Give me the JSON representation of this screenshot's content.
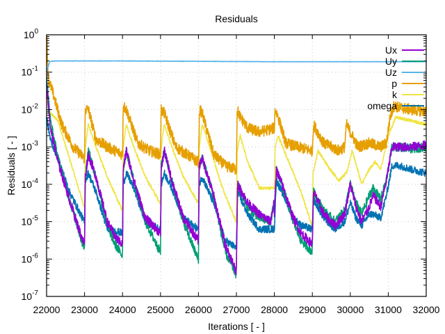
{
  "chart_data": {
    "type": "line",
    "title": "Residuals",
    "xlabel": "Iterations [ - ]",
    "ylabel": "Residuals [ - ]",
    "xscale": "linear",
    "yscale": "log",
    "xlim": [
      22000,
      32000
    ],
    "ylim": [
      1e-07,
      1
    ],
    "grid": true,
    "legend_position": "top-right",
    "x_ticks": [
      "22000",
      "23000",
      "24000",
      "25000",
      "26000",
      "27000",
      "28000",
      "29000",
      "30000",
      "31000",
      "32000"
    ],
    "y_ticks": [
      {
        "base": "10",
        "exp": "0"
      },
      {
        "base": "10",
        "exp": "-1"
      },
      {
        "base": "10",
        "exp": "-2"
      },
      {
        "base": "10",
        "exp": "-3"
      },
      {
        "base": "10",
        "exp": "-4"
      },
      {
        "base": "10",
        "exp": "-5"
      },
      {
        "base": "10",
        "exp": "-6"
      },
      {
        "base": "10",
        "exp": "-7"
      }
    ],
    "series": [
      {
        "name": "Ux",
        "color": "#9400d3",
        "noise": 0.12,
        "points": [
          [
            22000,
            -1.3
          ],
          [
            22100,
            -2.5
          ],
          [
            22300,
            -3.4
          ],
          [
            22600,
            -4.4
          ],
          [
            22950,
            -5.5
          ],
          [
            23000,
            -5.6
          ],
          [
            23020,
            -3.8
          ],
          [
            23100,
            -3.2
          ],
          [
            23300,
            -3.8
          ],
          [
            23600,
            -5.0
          ],
          [
            23800,
            -5.4
          ],
          [
            23990,
            -5.6
          ],
          [
            24000,
            -5.5
          ],
          [
            24020,
            -3.6
          ],
          [
            24100,
            -3.1
          ],
          [
            24300,
            -3.9
          ],
          [
            24600,
            -4.9
          ],
          [
            24990,
            -5.3
          ],
          [
            25000,
            -5.3
          ],
          [
            25020,
            -3.6
          ],
          [
            25100,
            -3.1
          ],
          [
            25300,
            -3.9
          ],
          [
            25600,
            -4.9
          ],
          [
            25990,
            -5.5
          ],
          [
            26000,
            -5.5
          ],
          [
            26020,
            -3.5
          ],
          [
            26100,
            -3.3
          ],
          [
            26400,
            -4.3
          ],
          [
            26700,
            -5.6
          ],
          [
            26990,
            -6.3
          ],
          [
            27000,
            -6.2
          ],
          [
            27030,
            -4.0
          ],
          [
            27300,
            -4.5
          ],
          [
            27600,
            -4.8
          ],
          [
            27900,
            -5.0
          ],
          [
            27990,
            -4.5
          ],
          [
            28000,
            -4.8
          ],
          [
            28050,
            -3.6
          ],
          [
            28200,
            -4.0
          ],
          [
            28500,
            -4.9
          ],
          [
            28700,
            -5.3
          ],
          [
            28990,
            -5.6
          ],
          [
            29000,
            -5.5
          ],
          [
            29030,
            -4.2
          ],
          [
            29300,
            -4.8
          ],
          [
            29600,
            -5.1
          ],
          [
            29850,
            -4.8
          ],
          [
            30000,
            -4.0
          ],
          [
            30150,
            -4.6
          ],
          [
            30300,
            -5.0
          ],
          [
            30500,
            -4.6
          ],
          [
            30600,
            -4.3
          ],
          [
            30800,
            -4.6
          ],
          [
            30950,
            -3.9
          ],
          [
            31100,
            -3.0
          ],
          [
            31300,
            -3.0
          ],
          [
            31600,
            -3.0
          ],
          [
            32000,
            -2.95
          ]
        ]
      },
      {
        "name": "Uy",
        "color": "#009e73",
        "noise": 0.12,
        "points": [
          [
            22000,
            -1.1
          ],
          [
            22100,
            -2.3
          ],
          [
            22300,
            -3.3
          ],
          [
            22600,
            -4.4
          ],
          [
            22950,
            -5.6
          ],
          [
            23000,
            -5.7
          ],
          [
            23020,
            -3.7
          ],
          [
            23100,
            -3.1
          ],
          [
            23300,
            -3.8
          ],
          [
            23600,
            -5.1
          ],
          [
            23800,
            -5.6
          ],
          [
            23990,
            -5.9
          ],
          [
            24000,
            -5.8
          ],
          [
            24020,
            -3.6
          ],
          [
            24100,
            -3.1
          ],
          [
            24300,
            -3.9
          ],
          [
            24600,
            -5.0
          ],
          [
            24990,
            -5.8
          ],
          [
            25000,
            -5.8
          ],
          [
            25020,
            -3.5
          ],
          [
            25100,
            -3.1
          ],
          [
            25300,
            -3.9
          ],
          [
            25600,
            -5.0
          ],
          [
            25990,
            -6.0
          ],
          [
            26000,
            -6.0
          ],
          [
            26020,
            -3.5
          ],
          [
            26100,
            -3.3
          ],
          [
            26400,
            -4.3
          ],
          [
            26700,
            -5.8
          ],
          [
            26990,
            -6.4
          ],
          [
            27000,
            -6.3
          ],
          [
            27030,
            -4.0
          ],
          [
            27300,
            -4.6
          ],
          [
            27600,
            -4.9
          ],
          [
            27900,
            -5.0
          ],
          [
            27990,
            -4.5
          ],
          [
            28000,
            -4.8
          ],
          [
            28050,
            -3.6
          ],
          [
            28200,
            -4.0
          ],
          [
            28500,
            -5.0
          ],
          [
            28700,
            -5.5
          ],
          [
            28990,
            -5.8
          ],
          [
            29000,
            -5.7
          ],
          [
            29030,
            -4.2
          ],
          [
            29300,
            -4.7
          ],
          [
            29600,
            -5.0
          ],
          [
            29850,
            -4.7
          ],
          [
            30000,
            -4.0
          ],
          [
            30150,
            -4.5
          ],
          [
            30300,
            -4.8
          ],
          [
            30500,
            -4.3
          ],
          [
            30600,
            -4.1
          ],
          [
            30800,
            -4.4
          ],
          [
            30950,
            -3.9
          ],
          [
            31100,
            -3.0
          ],
          [
            31300,
            -3.0
          ],
          [
            31600,
            -3.05
          ],
          [
            32000,
            -3.0
          ]
        ]
      },
      {
        "name": "Uz",
        "color": "#56b4e9",
        "noise": 0.005,
        "points": [
          [
            22000,
            -1.0
          ],
          [
            22080,
            -0.72
          ],
          [
            22200,
            -0.7
          ],
          [
            24000,
            -0.7
          ],
          [
            26000,
            -0.71
          ],
          [
            28000,
            -0.72
          ],
          [
            30000,
            -0.72
          ],
          [
            32000,
            -0.72
          ]
        ]
      },
      {
        "name": "p",
        "color": "#e69f00",
        "noise": 0.15,
        "points": [
          [
            22000,
            0.0
          ],
          [
            22050,
            -1.2
          ],
          [
            22150,
            -1.5
          ],
          [
            22400,
            -2.4
          ],
          [
            22700,
            -3.0
          ],
          [
            22990,
            -3.3
          ],
          [
            23000,
            -3.3
          ],
          [
            23020,
            -2.0
          ],
          [
            23100,
            -2.0
          ],
          [
            23300,
            -2.8
          ],
          [
            23600,
            -3.0
          ],
          [
            23990,
            -3.2
          ],
          [
            24000,
            -3.2
          ],
          [
            24020,
            -1.9
          ],
          [
            24100,
            -2.0
          ],
          [
            24400,
            -2.9
          ],
          [
            24700,
            -3.1
          ],
          [
            24990,
            -3.2
          ],
          [
            25000,
            -3.2
          ],
          [
            25020,
            -2.0
          ],
          [
            25100,
            -2.1
          ],
          [
            25400,
            -3.0
          ],
          [
            25990,
            -3.4
          ],
          [
            26000,
            -3.4
          ],
          [
            26030,
            -2.0
          ],
          [
            26100,
            -2.1
          ],
          [
            26400,
            -3.2
          ],
          [
            26700,
            -3.5
          ],
          [
            26990,
            -3.6
          ],
          [
            27000,
            -3.6
          ],
          [
            27020,
            -2.0
          ],
          [
            27100,
            -2.2
          ],
          [
            27300,
            -2.5
          ],
          [
            27600,
            -2.6
          ],
          [
            27990,
            -2.5
          ],
          [
            28000,
            -2.5
          ],
          [
            28020,
            -2.0
          ],
          [
            28100,
            -2.2
          ],
          [
            28300,
            -2.9
          ],
          [
            28600,
            -3.0
          ],
          [
            28990,
            -3.1
          ],
          [
            29000,
            -3.1
          ],
          [
            29030,
            -2.4
          ],
          [
            29300,
            -2.9
          ],
          [
            29700,
            -3.1
          ],
          [
            29850,
            -3.0
          ],
          [
            29900,
            -2.4
          ],
          [
            30000,
            -2.6
          ],
          [
            30200,
            -3.0
          ],
          [
            30500,
            -2.9
          ],
          [
            30800,
            -3.0
          ],
          [
            30950,
            -2.9
          ],
          [
            31050,
            -2.2
          ],
          [
            31150,
            -1.9
          ],
          [
            31300,
            -1.95
          ],
          [
            31600,
            -2.0
          ],
          [
            32000,
            -2.05
          ]
        ]
      },
      {
        "name": "k",
        "color": "#f0e442",
        "noise": 0.04,
        "points": [
          [
            22000,
            -1.7
          ],
          [
            22100,
            -2.1
          ],
          [
            22300,
            -2.3
          ],
          [
            22600,
            -3.3
          ],
          [
            22990,
            -4.6
          ],
          [
            23000,
            -4.6
          ],
          [
            23020,
            -3.0
          ],
          [
            23100,
            -2.4
          ],
          [
            23300,
            -3.0
          ],
          [
            23600,
            -3.8
          ],
          [
            23990,
            -4.7
          ],
          [
            24000,
            -4.6
          ],
          [
            24020,
            -3.0
          ],
          [
            24100,
            -2.4
          ],
          [
            24300,
            -3.0
          ],
          [
            24600,
            -3.8
          ],
          [
            24990,
            -4.5
          ],
          [
            25000,
            -4.5
          ],
          [
            25020,
            -3.0
          ],
          [
            25100,
            -2.4
          ],
          [
            25300,
            -3.0
          ],
          [
            25600,
            -3.8
          ],
          [
            25990,
            -4.5
          ],
          [
            26000,
            -4.5
          ],
          [
            26020,
            -3.0
          ],
          [
            26100,
            -2.4
          ],
          [
            26300,
            -3.0
          ],
          [
            26600,
            -4.0
          ],
          [
            26990,
            -5.0
          ],
          [
            27000,
            -5.0
          ],
          [
            27020,
            -3.1
          ],
          [
            27100,
            -2.7
          ],
          [
            27300,
            -3.4
          ],
          [
            27600,
            -4.1
          ],
          [
            27990,
            -4.1
          ],
          [
            28000,
            -4.1
          ],
          [
            28020,
            -3.0
          ],
          [
            28100,
            -2.7
          ],
          [
            28300,
            -3.2
          ],
          [
            28700,
            -4.2
          ],
          [
            28990,
            -5.1
          ],
          [
            29000,
            -5.1
          ],
          [
            29020,
            -3.7
          ],
          [
            29150,
            -3.1
          ],
          [
            29400,
            -3.5
          ],
          [
            29700,
            -3.9
          ],
          [
            29900,
            -3.7
          ],
          [
            30050,
            -3.1
          ],
          [
            30300,
            -4.0
          ],
          [
            30500,
            -3.6
          ],
          [
            30650,
            -3.4
          ],
          [
            30800,
            -3.6
          ],
          [
            31000,
            -2.7
          ],
          [
            31200,
            -2.2
          ],
          [
            31600,
            -2.3
          ],
          [
            32000,
            -2.4
          ]
        ]
      },
      {
        "name": "omega",
        "color": "#0072b2",
        "noise": 0.1,
        "points": [
          [
            22000,
            -2.2
          ],
          [
            22100,
            -2.8
          ],
          [
            22300,
            -3.3
          ],
          [
            22600,
            -4.2
          ],
          [
            22990,
            -5.0
          ],
          [
            23000,
            -5.0
          ],
          [
            23020,
            -3.9
          ],
          [
            23100,
            -3.7
          ],
          [
            23300,
            -4.2
          ],
          [
            23600,
            -5.2
          ],
          [
            23990,
            -5.3
          ],
          [
            24000,
            -5.3
          ],
          [
            24020,
            -4.0
          ],
          [
            24100,
            -3.7
          ],
          [
            24300,
            -4.1
          ],
          [
            24600,
            -5.0
          ],
          [
            24990,
            -5.2
          ],
          [
            25000,
            -5.2
          ],
          [
            25020,
            -4.0
          ],
          [
            25100,
            -3.7
          ],
          [
            25300,
            -4.1
          ],
          [
            25600,
            -4.9
          ],
          [
            25990,
            -5.2
          ],
          [
            26000,
            -5.2
          ],
          [
            26020,
            -4.0
          ],
          [
            26100,
            -3.8
          ],
          [
            26400,
            -4.5
          ],
          [
            26700,
            -5.5
          ],
          [
            26990,
            -5.7
          ],
          [
            27000,
            -5.7
          ],
          [
            27030,
            -4.2
          ],
          [
            27300,
            -4.8
          ],
          [
            27600,
            -5.2
          ],
          [
            27990,
            -5.2
          ],
          [
            28000,
            -5.2
          ],
          [
            28050,
            -3.9
          ],
          [
            28200,
            -4.2
          ],
          [
            28500,
            -4.9
          ],
          [
            28700,
            -5.1
          ],
          [
            28990,
            -5.2
          ],
          [
            29000,
            -5.2
          ],
          [
            29030,
            -4.4
          ],
          [
            29300,
            -4.9
          ],
          [
            29600,
            -5.2
          ],
          [
            29850,
            -5.0
          ],
          [
            30000,
            -4.5
          ],
          [
            30150,
            -4.9
          ],
          [
            30300,
            -5.1
          ],
          [
            30500,
            -4.8
          ],
          [
            30600,
            -4.8
          ],
          [
            30800,
            -4.9
          ],
          [
            30950,
            -4.3
          ],
          [
            31100,
            -3.5
          ],
          [
            31300,
            -3.5
          ],
          [
            31600,
            -3.6
          ],
          [
            32000,
            -3.7
          ]
        ]
      }
    ]
  }
}
